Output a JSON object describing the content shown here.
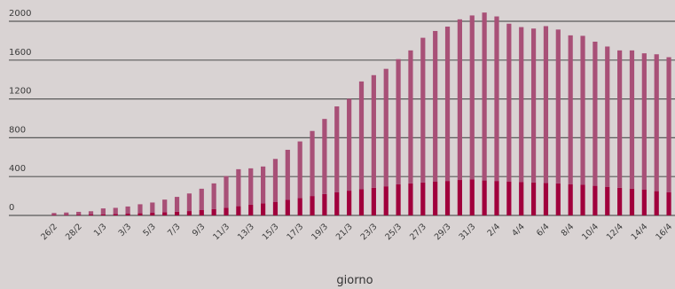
{
  "chart_data": {
    "type": "bar",
    "stacked": true,
    "xlabel": "giorno",
    "ylabel": "",
    "ylim": [
      0,
      2000
    ],
    "yticks": [
      0,
      400,
      800,
      1200,
      1600,
      2000
    ],
    "ytick_labels": [
      "0",
      "400",
      "800",
      "1200",
      "1600",
      "2000"
    ],
    "grid": true,
    "colors": {
      "background": "#d9d3d3",
      "grid": "#5a5a5a"
    },
    "categories": [
      "26/2",
      "27/2",
      "28/2",
      "29/2",
      "1/3",
      "2/3",
      "3/3",
      "4/3",
      "5/3",
      "6/3",
      "7/3",
      "8/3",
      "9/3",
      "10/3",
      "11/3",
      "12/3",
      "13/3",
      "14/3",
      "15/3",
      "16/3",
      "17/3",
      "18/3",
      "19/3",
      "20/3",
      "21/3",
      "22/3",
      "23/3",
      "24/3",
      "25/3",
      "26/3",
      "27/3",
      "28/3",
      "29/3",
      "30/3",
      "31/3",
      "1/4",
      "2/4",
      "3/4",
      "4/4",
      "5/4",
      "6/4",
      "7/4",
      "8/4",
      "9/4",
      "10/4",
      "11/4",
      "12/4",
      "13/4",
      "14/4",
      "15/4",
      "16/4"
    ],
    "xtick_labels": [
      "26/2",
      "",
      "28/2",
      "",
      "1/3",
      "",
      "3/3",
      "",
      "5/3",
      "",
      "7/3",
      "",
      "9/3",
      "",
      "11/3",
      "",
      "13/3",
      "",
      "15/3",
      "",
      "17/3",
      "",
      "19/3",
      "",
      "21/3",
      "",
      "23/3",
      "",
      "25/3",
      "",
      "27/3",
      "",
      "29/3",
      "",
      "31/3",
      "",
      "2/4",
      "",
      "4/4",
      "",
      "6/4",
      "",
      "8/4",
      "",
      "10/4",
      "",
      "12/4",
      "",
      "14/4",
      "",
      "16/4"
    ],
    "series": [
      {
        "color": "#a0003c",
        "values": [
          5,
          6,
          8,
          9,
          12,
          15,
          18,
          22,
          27,
          33,
          38,
          45,
          55,
          65,
          80,
          95,
          110,
          125,
          140,
          160,
          180,
          200,
          220,
          240,
          255,
          270,
          285,
          300,
          320,
          330,
          340,
          350,
          355,
          365,
          370,
          360,
          355,
          350,
          345,
          340,
          335,
          330,
          320,
          315,
          305,
          295,
          285,
          275,
          265,
          250,
          240
        ]
      },
      {
        "color": "#a85077",
        "values": [
          20,
          24,
          29,
          34,
          60,
          63,
          74,
          93,
          106,
          130,
          153,
          181,
          220,
          265,
          325,
          381,
          375,
          379,
          442,
          516,
          582,
          670,
          774,
          883,
          946,
          1110,
          1160,
          1210,
          1290,
          1370,
          1490,
          1550,
          1590,
          1655,
          1690,
          1730,
          1695,
          1625,
          1595,
          1585,
          1615,
          1585,
          1535,
          1535,
          1485,
          1445,
          1415,
          1425,
          1405,
          1410,
          1390
        ]
      }
    ]
  }
}
